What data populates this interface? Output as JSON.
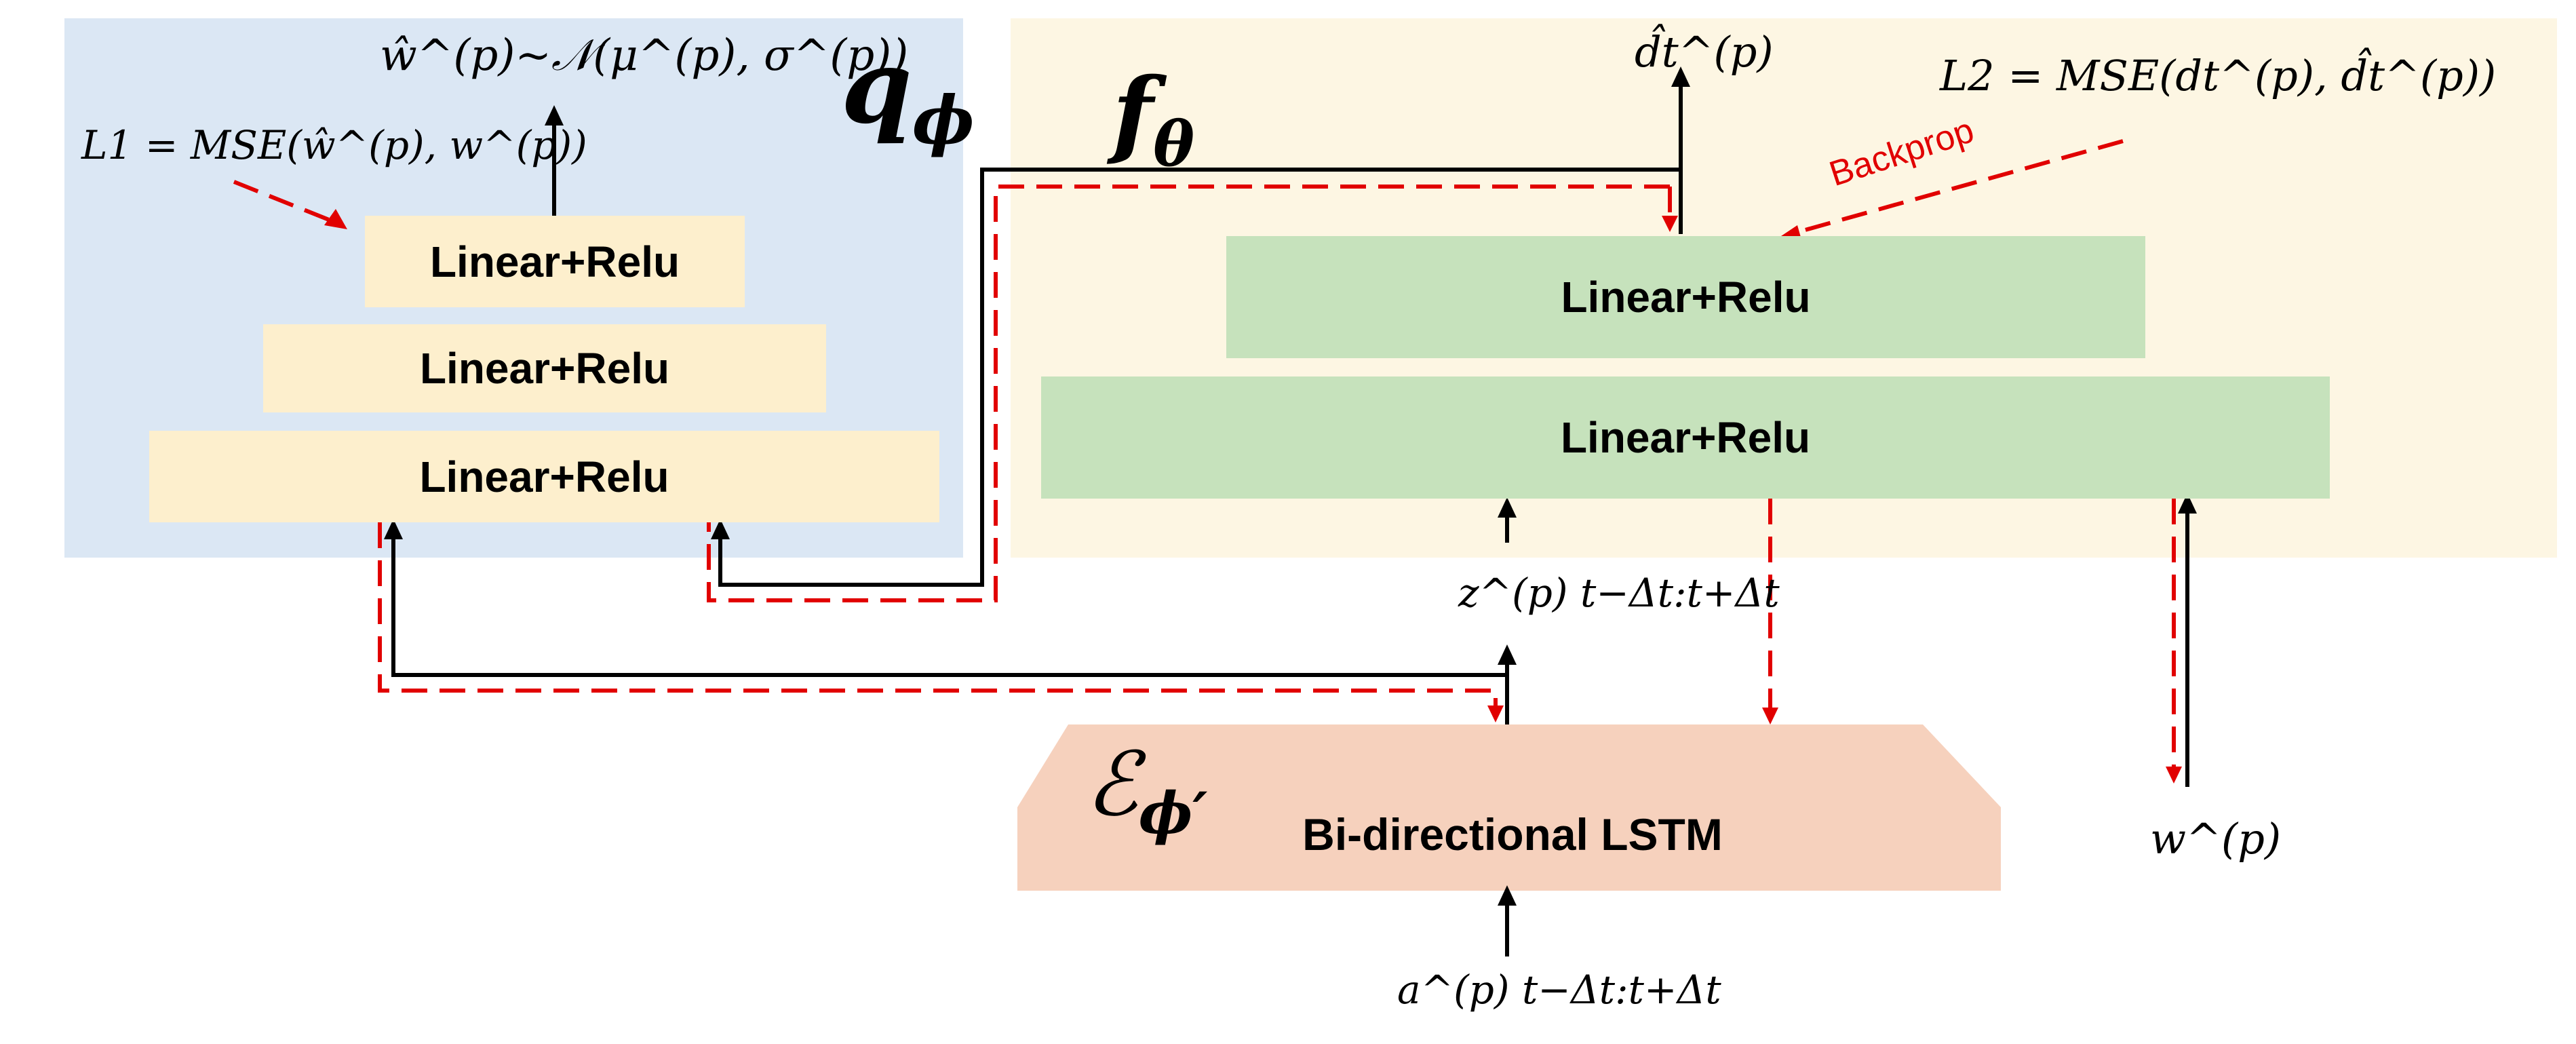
{
  "colors": {
    "q_region": "#dbe7f4",
    "f_region": "#fdf6e3",
    "yellow_block": "#fdefcd",
    "green_block": "#c6e2bc",
    "lstm_block": "#f6d1bd",
    "arrow": "#000000",
    "backprop": "#e10000"
  },
  "q_phi": {
    "symbol": "q",
    "subscript": "ϕ",
    "output_label": "ŵ^(p)~𝒩(μ^(p), σ^(p))",
    "loss_label": "L1 = MSE(ŵ^(p), w^(p))",
    "layers": [
      "Linear+Relu",
      "Linear+Relu",
      "Linear+Relu"
    ]
  },
  "f_theta": {
    "symbol": "f",
    "subscript": "θ",
    "output_label": "d̂t^(p)",
    "loss_label": "L2 = MSE(dt^(p), d̂t^(p))",
    "backprop_label": "Backprop",
    "layers": [
      "Linear+Relu",
      "Linear+Relu"
    ]
  },
  "encoder": {
    "symbol": "ℰ",
    "subscript": "ϕ′",
    "label": "Bi-directional LSTM"
  },
  "latent_label": "z^(p) t−Δt:t+Δt",
  "input_label": "a^(p) t−Δt:t+Δt",
  "weight_label": "w^(p)"
}
